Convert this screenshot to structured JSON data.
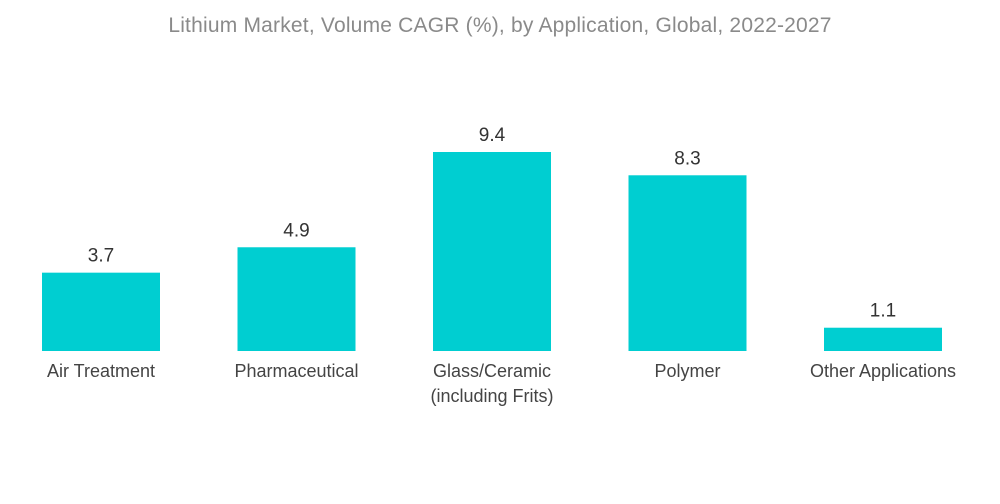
{
  "chart_data": {
    "type": "bar",
    "title": "Lithium Market, Volume CAGR (%), by Application, Global, 2022-2027",
    "categories": [
      [
        "Air Treatment"
      ],
      [
        "Pharmaceutical"
      ],
      [
        "Glass/Ceramic",
        "(including Frits)"
      ],
      [
        "Polymer"
      ],
      [
        "Other Applications"
      ]
    ],
    "values": [
      3.7,
      4.9,
      9.4,
      8.3,
      1.1
    ],
    "value_labels": [
      "3.7",
      "4.9",
      "9.4",
      "8.3",
      "1.1"
    ],
    "ylim": [
      0,
      9.4
    ],
    "grid": false,
    "legend": "none",
    "bar_color": "#00CED1"
  }
}
